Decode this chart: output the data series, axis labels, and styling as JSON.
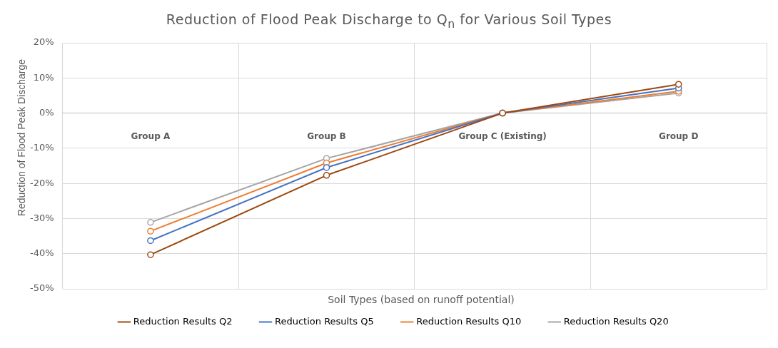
{
  "chart_data": {
    "type": "line",
    "title": "Reduction of Flood Peak Discharge to Q$_{n}$ for Various Soil Types",
    "xlabel": "Soil Types (based on runoff potential)",
    "ylabel": "Reduction of Flood Peak Discharge",
    "categories": [
      "Group A",
      "Group B",
      "Group C (Existing)",
      "Group D"
    ],
    "series": [
      {
        "name": "Reduction Results Q2",
        "color": "#9e480e",
        "values": [
          -40.3,
          -17.7,
          0,
          8.2
        ]
      },
      {
        "name": "Reduction Results Q5",
        "color": "#4472c4",
        "values": [
          -36.3,
          -15.5,
          0,
          7.1
        ]
      },
      {
        "name": "Reduction Results Q10",
        "color": "#ed7d31",
        "values": [
          -33.6,
          -14.2,
          0,
          6.2
        ]
      },
      {
        "name": "Reduction Results Q20",
        "color": "#a5a5a5",
        "values": [
          -31.1,
          -12.9,
          0,
          5.7
        ]
      }
    ],
    "ylim": [
      -50,
      20
    ],
    "yticks": [
      {
        "value": -50,
        "label": "-50%"
      },
      {
        "value": -40,
        "label": "-40%"
      },
      {
        "value": -30,
        "label": "-30%"
      },
      {
        "value": -20,
        "label": "-20%"
      },
      {
        "value": -10,
        "label": "-10%"
      },
      {
        "value": 0,
        "label": "0%"
      },
      {
        "value": 10,
        "label": "10%"
      },
      {
        "value": 20,
        "label": "20%"
      }
    ],
    "grid": true,
    "legend": "bottom",
    "marker": "circle",
    "line_style": "solid"
  }
}
